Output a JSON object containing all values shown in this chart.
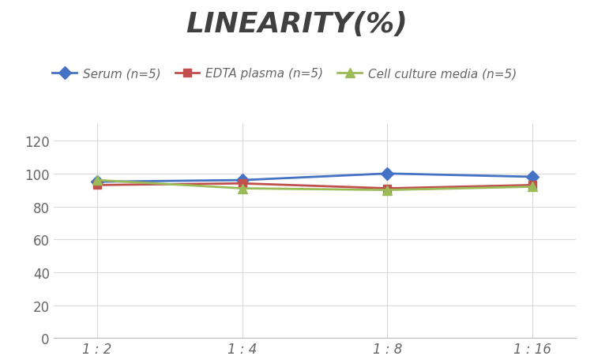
{
  "title": "LINEARITY(%)",
  "x_labels": [
    "1 : 2",
    "1 : 4",
    "1 : 8",
    "1 : 16"
  ],
  "x_values": [
    0,
    1,
    2,
    3
  ],
  "series": [
    {
      "label": "Serum (n=5)",
      "values": [
        95,
        96,
        100,
        98
      ],
      "color": "#4472C4",
      "marker": "D",
      "markersize": 8,
      "linewidth": 2
    },
    {
      "label": "EDTA plasma (n=5)",
      "values": [
        93,
        94,
        91,
        93
      ],
      "color": "#C0504D",
      "marker": "s",
      "markersize": 7,
      "linewidth": 2
    },
    {
      "label": "Cell culture media (n=5)",
      "values": [
        96,
        91,
        90,
        92
      ],
      "color": "#9BBB59",
      "marker": "^",
      "markersize": 8,
      "linewidth": 2
    }
  ],
  "ylim": [
    0,
    130
  ],
  "yticks": [
    0,
    20,
    40,
    60,
    80,
    100,
    120
  ],
  "background_color": "#FFFFFF",
  "title_fontsize": 26,
  "title_style": "italic",
  "title_weight": "bold",
  "legend_fontsize": 11,
  "tick_fontsize": 12,
  "grid_color": "#D9D9D9",
  "title_color": "#404040",
  "tick_color": "#666666"
}
